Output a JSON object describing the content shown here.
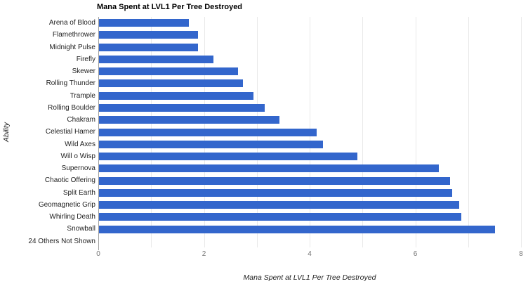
{
  "chart_data": {
    "type": "bar",
    "orientation": "horizontal",
    "title": "Mana Spent at LVL1 Per Tree Destroyed",
    "xlabel": "Mana Spent at LVL1 Per Tree Destroyed",
    "ylabel": "Ability",
    "categories": [
      "Arena of Blood",
      "Flamethrower",
      "Midnight Pulse",
      "Firefly",
      "Skewer",
      "Rolling Thunder",
      "Trample",
      "Rolling Boulder",
      "Chakram",
      "Celestial Hamer",
      "Wild Axes",
      "Will o Wisp",
      "Supernova",
      "Chaotic Offering",
      "Split Earth",
      "Geomagnetic Grip",
      "Whirling Death",
      "Snowball",
      "24 Others Not Shown"
    ],
    "values": [
      1.7,
      1.87,
      1.87,
      2.17,
      2.63,
      2.73,
      2.92,
      3.13,
      3.41,
      4.12,
      4.24,
      4.89,
      6.43,
      6.64,
      6.68,
      6.82,
      6.86,
      7.5,
      0
    ],
    "xlim": [
      0,
      8
    ],
    "x_ticks": [
      0,
      2,
      4,
      6,
      8
    ],
    "gridline_every": 1,
    "legend": "none",
    "bar_color": "#3366cc"
  },
  "colors": {
    "background": "#ffffff",
    "bar": "#3366cc",
    "gridline": "#e9e9e9",
    "axis_line": "#9e9e9e",
    "tick_label": "#757575",
    "category_label": "#222222",
    "title": "#000000"
  }
}
